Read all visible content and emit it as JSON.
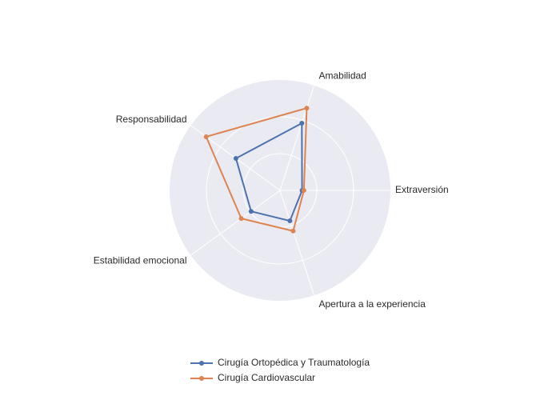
{
  "chart_data": {
    "type": "radar",
    "categories": [
      "Extraversión",
      "Amabilidad",
      "Responsabilidad",
      "Estabilidad emocional",
      "Apertura a la experiencia"
    ],
    "rlim": [
      0,
      3
    ],
    "rgrid": [
      1,
      2
    ],
    "series": [
      {
        "name": "Cirugía Ortopédica y Traumatología",
        "color": "#4c72b0",
        "values": [
          0.6,
          1.92,
          1.48,
          0.97,
          0.87
        ]
      },
      {
        "name": "Cirugía Cardiovascular",
        "color": "#dd8452",
        "values": [
          0.65,
          2.35,
          2.48,
          1.3,
          1.16
        ]
      }
    ]
  }
}
